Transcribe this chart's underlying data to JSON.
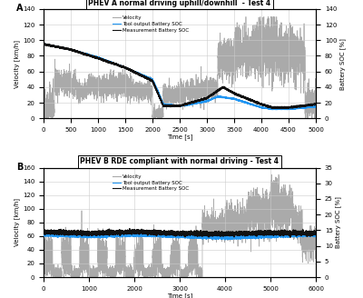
{
  "panel_A": {
    "title": "PHEV A normal driving uphill/downhill  - Test 4",
    "xlim": [
      0,
      5000
    ],
    "ylim_vel": [
      0,
      140
    ],
    "ylim_soc": [
      0,
      140
    ],
    "yticks_vel": [
      0,
      20,
      40,
      60,
      80,
      100,
      120,
      140
    ],
    "yticks_soc": [
      0,
      20,
      40,
      60,
      80,
      100,
      120,
      140
    ],
    "xticks": [
      0,
      500,
      1000,
      1500,
      2000,
      2500,
      3000,
      3500,
      4000,
      4500,
      5000
    ]
  },
  "panel_B": {
    "title": "PHEV B RDE compliant with normal driving - Test 4",
    "xlim": [
      0,
      6000
    ],
    "ylim_vel": [
      0,
      160
    ],
    "ylim_soc": [
      0,
      35
    ],
    "yticks_vel": [
      0,
      20,
      40,
      60,
      80,
      100,
      120,
      140,
      160
    ],
    "yticks_soc": [
      0,
      5,
      10,
      15,
      20,
      25,
      30,
      35
    ],
    "xticks": [
      0,
      1000,
      2000,
      3000,
      4000,
      5000,
      6000
    ]
  },
  "xlabel": "Time [s]",
  "ylabel_left": "Velocity [km/h]",
  "ylabel_right": "Battery SOC [%]",
  "color_velocity": "#aaaaaa",
  "color_tool": "#2196F3",
  "color_meas": "#111111",
  "legend_labels": [
    "Velocity",
    "Tool output Battery SOC",
    "Measurement Battery SOC"
  ],
  "bg_color": "#ffffff",
  "grid_color": "#cccccc"
}
